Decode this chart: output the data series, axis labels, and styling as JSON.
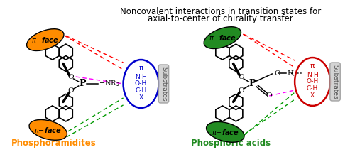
{
  "title_line1": "Noncovalent interactions in transition states for",
  "title_line2": "axial-to-center of chirality transfer",
  "title_fontsize": 8.5,
  "label_phosphoramidites": "Phosphoramidites",
  "label_phosphoric": "Phosphoric acids",
  "label_phosphoramidites_color": "#FF8C00",
  "label_phosphoric_color": "#228B22",
  "pi_face_color_left": "#FF8C00",
  "pi_face_color_right": "#228B22",
  "substrates_left_color": "#0000CC",
  "substrates_right_color": "#CC0000",
  "background_color": "#FFFFFF",
  "fig_w": 5.0,
  "fig_h": 2.21,
  "dpi": 100
}
